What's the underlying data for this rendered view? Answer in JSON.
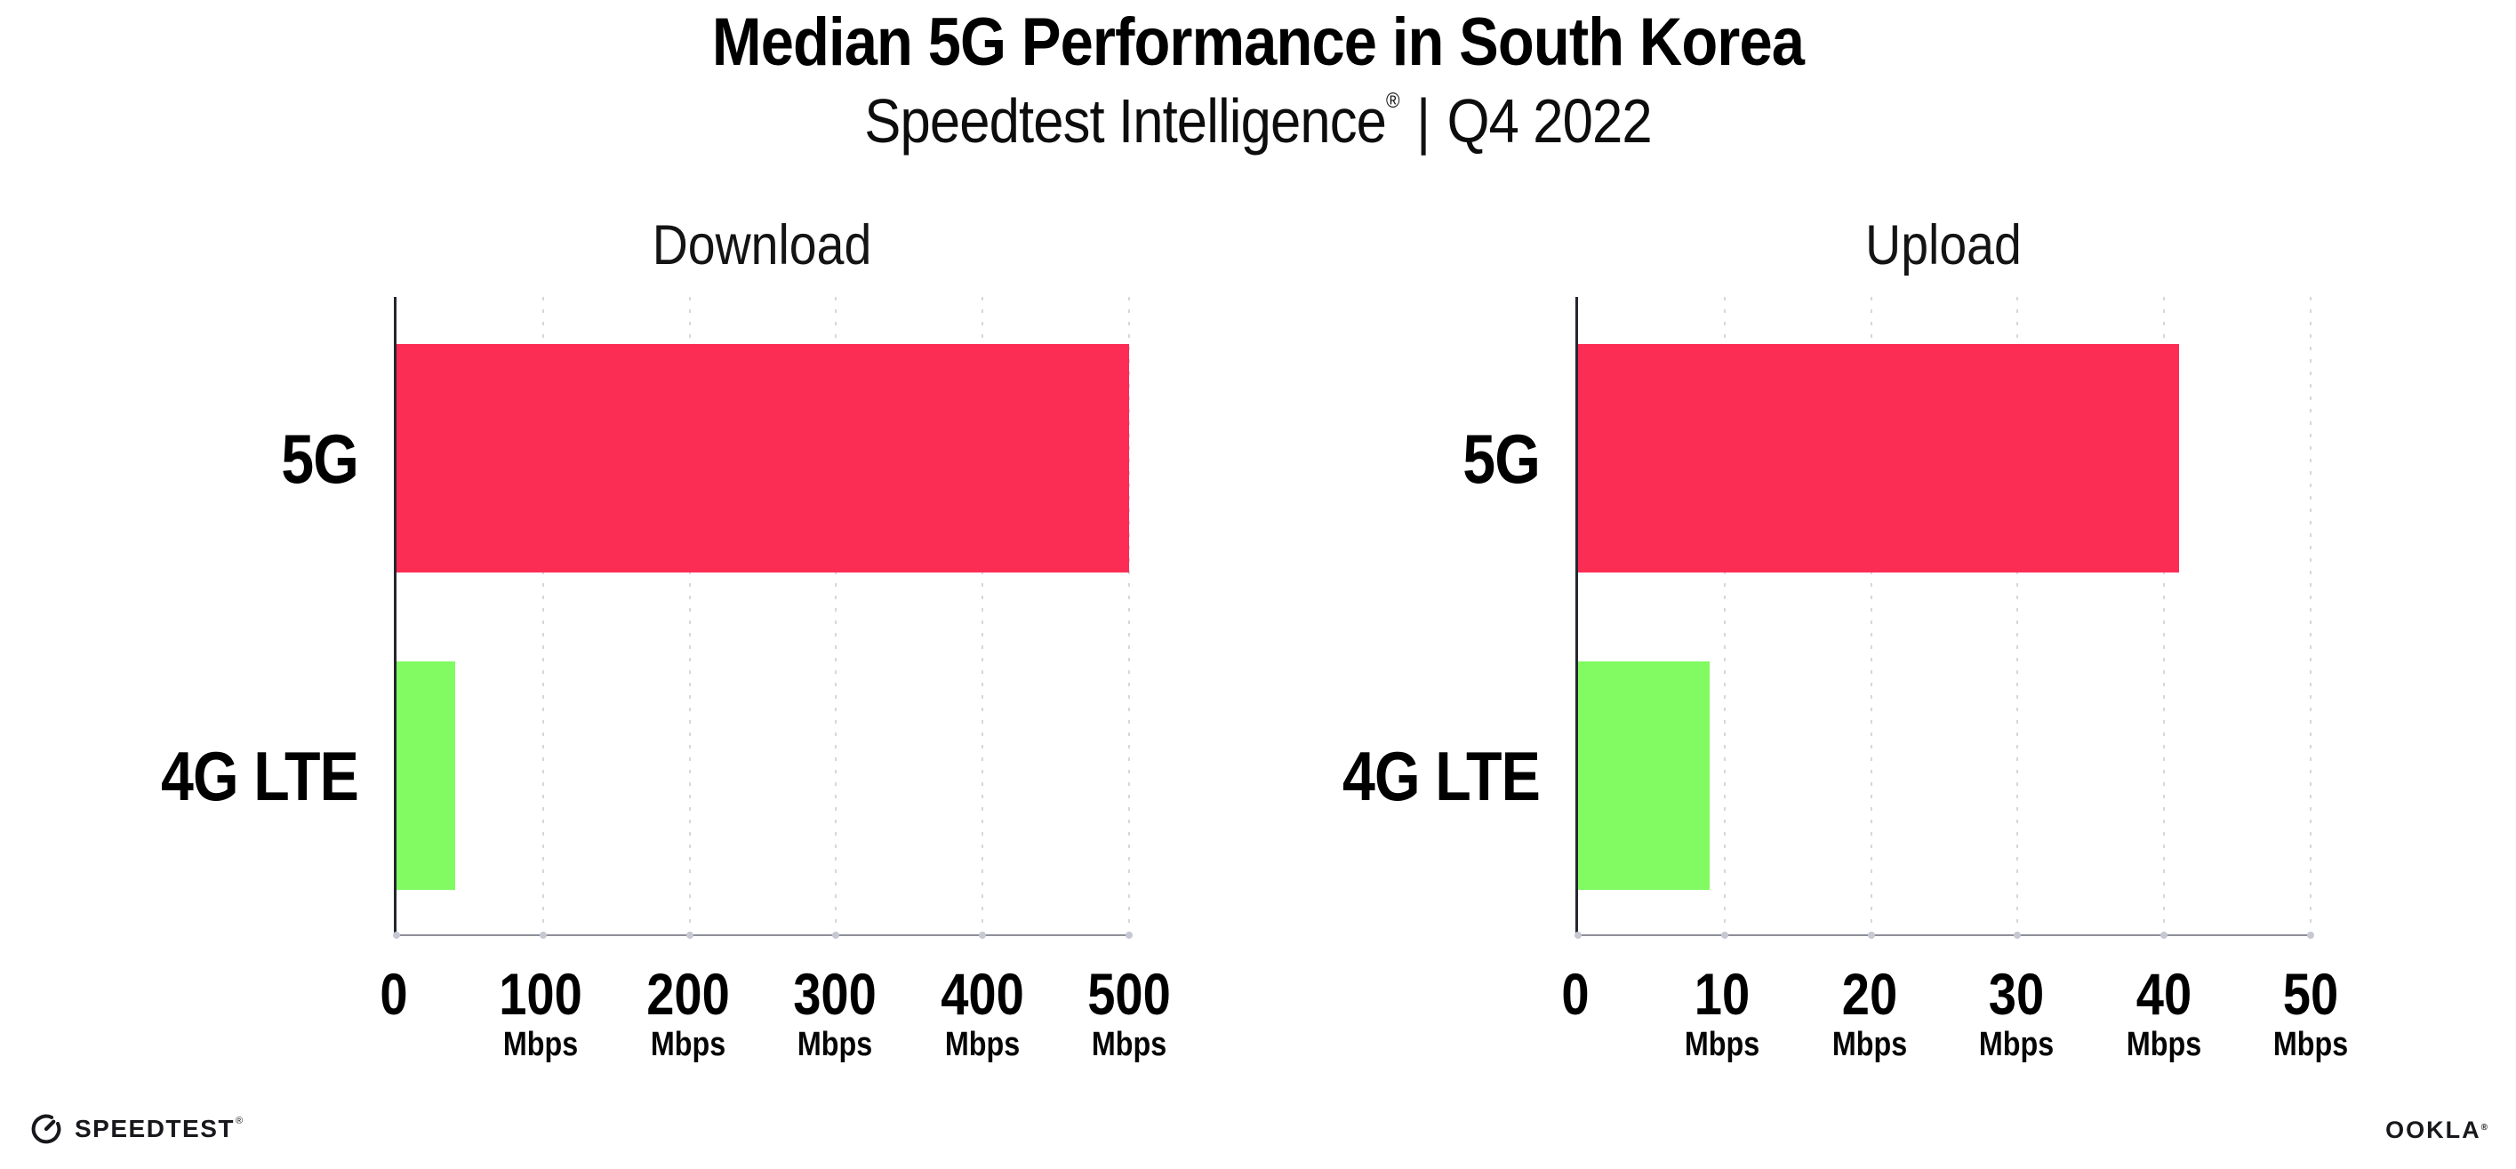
{
  "header": {
    "title": "Median 5G Performance in South Korea",
    "subtitle_brand": "Speedtest Intelligence",
    "subtitle_reg": "®",
    "subtitle_separator": "|",
    "subtitle_period": "Q4 2022"
  },
  "chart_data": [
    {
      "type": "bar",
      "orientation": "horizontal",
      "title": "Download",
      "categories": [
        "5G",
        "4G LTE"
      ],
      "values": [
        500,
        40
      ],
      "unit": "Mbps",
      "xlim": [
        0,
        500
      ],
      "xticks": [
        0,
        100,
        200,
        300,
        400,
        500
      ],
      "tick_unit_label": "Mbps",
      "bar_colors": [
        "#FC2D55",
        "#82FB62"
      ],
      "grid": "vertical dotted",
      "legend": "none"
    },
    {
      "type": "bar",
      "orientation": "horizontal",
      "title": "Upload",
      "categories": [
        "5G",
        "4G LTE"
      ],
      "values": [
        41,
        9
      ],
      "unit": "Mbps",
      "xlim": [
        0,
        50
      ],
      "xticks": [
        0,
        10,
        20,
        30,
        40,
        50
      ],
      "tick_unit_label": "Mbps",
      "bar_colors": [
        "#FC2D55",
        "#82FB62"
      ],
      "grid": "vertical dotted",
      "legend": "none"
    }
  ],
  "footer": {
    "speedtest_logo_text": "SPEEDTEST",
    "speedtest_reg": "®",
    "ookla_logo_text": "OOKLA",
    "ookla_reg": "®"
  },
  "colors": {
    "bar_5g": "#FC2D55",
    "bar_4g_lte": "#82FB62",
    "gridline": "#D6D6E0",
    "axis_line": "#8F8F98",
    "spine": "#25262F",
    "background": "#FFFFFF",
    "text": "#000000"
  }
}
